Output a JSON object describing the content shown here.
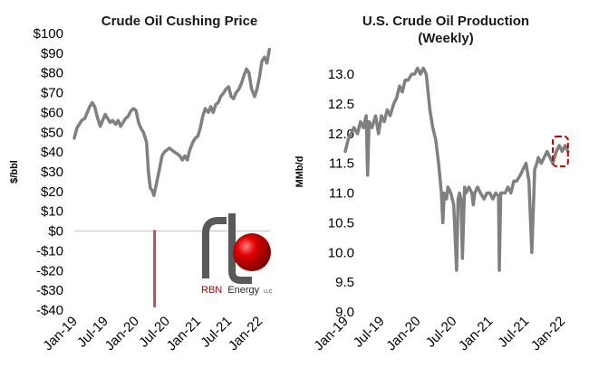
{
  "colors": {
    "series": "#808080",
    "negative_spike": "#c0504d",
    "highlight_box": "#c00000",
    "logo_ball": "#e00000",
    "logo_pipe": "#595959"
  },
  "logo": {
    "brand": "RBN",
    "word": "Energy",
    "suffix": "LLC"
  },
  "chart_data": [
    {
      "type": "line",
      "title": "Crude Oil Cushing Price",
      "ylabel": "$/bbl",
      "xlabel": "",
      "ylim": [
        -40,
        100
      ],
      "yticks": [
        -40,
        -30,
        -20,
        -10,
        0,
        10,
        20,
        30,
        40,
        50,
        60,
        70,
        80,
        90,
        100
      ],
      "ytick_labels": [
        "-$40",
        "-$30",
        "-$20",
        "-$10",
        "$0",
        "$10",
        "$20",
        "$30",
        "$40",
        "$50",
        "$60",
        "$70",
        "$80",
        "$90",
        "$100"
      ],
      "xticks": [
        2019.0,
        2019.5,
        2020.0,
        2020.5,
        2021.0,
        2021.5,
        2022.0
      ],
      "xtick_labels": [
        "Jan-19",
        "Jul-19",
        "Jan-20",
        "Jul-20",
        "Jan-21",
        "Jul-21",
        "Jan-22"
      ],
      "xlim": [
        2019.0,
        2022.17
      ],
      "series": [
        {
          "color": "#808080",
          "x": [
            2019.0,
            2019.04,
            2019.08,
            2019.12,
            2019.17,
            2019.21,
            2019.25,
            2019.29,
            2019.33,
            2019.37,
            2019.42,
            2019.46,
            2019.5,
            2019.54,
            2019.58,
            2019.62,
            2019.67,
            2019.71,
            2019.75,
            2019.79,
            2019.83,
            2019.87,
            2019.92,
            2019.96,
            2020.0,
            2020.04,
            2020.08,
            2020.12,
            2020.17,
            2020.2,
            2020.23,
            2020.27,
            2020.29,
            2020.33,
            2020.37,
            2020.42,
            2020.46,
            2020.5,
            2020.54,
            2020.58,
            2020.62,
            2020.67,
            2020.71,
            2020.75,
            2020.79,
            2020.83,
            2020.87,
            2020.92,
            2020.96,
            2021.0,
            2021.04,
            2021.08,
            2021.12,
            2021.17,
            2021.21,
            2021.25,
            2021.29,
            2021.33,
            2021.37,
            2021.42,
            2021.46,
            2021.5,
            2021.54,
            2021.58,
            2021.62,
            2021.67,
            2021.71,
            2021.75,
            2021.79,
            2021.83,
            2021.87,
            2021.92,
            2021.96,
            2022.0,
            2022.04,
            2022.08,
            2022.12,
            2022.16
          ],
          "y": [
            47,
            52,
            54,
            56,
            57,
            60,
            63,
            65,
            63,
            58,
            53,
            56,
            59,
            57,
            55,
            56,
            54,
            56,
            53,
            55,
            57,
            58,
            61,
            62,
            61,
            55,
            52,
            50,
            45,
            30,
            22,
            20,
            18,
            24,
            30,
            38,
            40,
            41,
            42,
            41,
            40,
            39,
            38,
            36,
            38,
            36,
            41,
            45,
            47,
            48,
            52,
            58,
            62,
            60,
            63,
            60,
            64,
            65,
            68,
            70,
            72,
            73,
            68,
            67,
            70,
            72,
            75,
            79,
            82,
            80,
            72,
            68,
            72,
            78,
            86,
            88,
            85,
            92
          ]
        },
        {
          "name": "",
          "color": "#c0504d",
          "x": [
            2020.3,
            2020.3
          ],
          "y": [
            0,
            -38
          ]
        }
      ]
    },
    {
      "type": "line",
      "title": "U.S. Crude Oil Production (Weekly)",
      "title_lines": [
        "U.S. Crude Oil Production",
        "(Weekly)"
      ],
      "ylabel": "MMb/d",
      "xlabel": "",
      "ylim": [
        9.0,
        13.0
      ],
      "yticks": [
        9.0,
        9.5,
        10.0,
        10.5,
        11.0,
        11.5,
        12.0,
        12.5,
        13.0
      ],
      "ytick_labels": [
        "9.0",
        "9.5",
        "10.0",
        "10.5",
        "11.0",
        "11.5",
        "12.0",
        "12.5",
        "13.0"
      ],
      "xticks": [
        2019.0,
        2019.5,
        2020.0,
        2020.5,
        2021.0,
        2021.5,
        2022.0
      ],
      "xtick_labels": [
        "Jan-19",
        "Jul-19",
        "Jan-20",
        "Jul-20",
        "Jan-21",
        "Jul-21",
        "Jan-22"
      ],
      "xlim": [
        2019.0,
        2022.12
      ],
      "highlight": {
        "x": [
          2021.87,
          2022.08
        ],
        "y": [
          11.45,
          11.95
        ]
      },
      "series": [
        {
          "color": "#808080",
          "x": [
            2019.0,
            2019.04,
            2019.08,
            2019.12,
            2019.17,
            2019.21,
            2019.25,
            2019.29,
            2019.31,
            2019.33,
            2019.37,
            2019.42,
            2019.46,
            2019.5,
            2019.54,
            2019.58,
            2019.62,
            2019.67,
            2019.71,
            2019.75,
            2019.79,
            2019.83,
            2019.87,
            2019.92,
            2019.96,
            2020.0,
            2020.04,
            2020.08,
            2020.12,
            2020.17,
            2020.21,
            2020.25,
            2020.29,
            2020.33,
            2020.35,
            2020.37,
            2020.4,
            2020.42,
            2020.46,
            2020.5,
            2020.54,
            2020.56,
            2020.58,
            2020.6,
            2020.62,
            2020.65,
            2020.67,
            2020.71,
            2020.75,
            2020.77,
            2020.79,
            2020.83,
            2020.87,
            2020.92,
            2020.96,
            2021.0,
            2021.04,
            2021.08,
            2021.12,
            2021.13,
            2021.15,
            2021.17,
            2021.21,
            2021.25,
            2021.29,
            2021.33,
            2021.37,
            2021.42,
            2021.46,
            2021.5,
            2021.54,
            2021.58,
            2021.62,
            2021.65,
            2021.67,
            2021.71,
            2021.75,
            2021.79,
            2021.83,
            2021.87,
            2021.92,
            2021.96,
            2022.0,
            2022.04,
            2022.08
          ],
          "y": [
            11.7,
            11.9,
            12.0,
            12.1,
            12.0,
            12.2,
            12.1,
            12.3,
            11.3,
            12.2,
            12.1,
            12.3,
            12.0,
            12.3,
            12.2,
            12.4,
            12.3,
            12.5,
            12.6,
            12.8,
            12.7,
            12.9,
            12.9,
            13.0,
            13.0,
            13.1,
            13.0,
            13.1,
            13.0,
            12.4,
            12.1,
            11.9,
            11.5,
            11.0,
            10.5,
            11.0,
            10.9,
            11.1,
            11.0,
            10.8,
            9.7,
            10.9,
            11.0,
            10.9,
            9.9,
            11.1,
            11.0,
            11.1,
            11.0,
            10.8,
            11.0,
            11.1,
            11.0,
            10.9,
            11.0,
            11.0,
            10.9,
            11.0,
            10.95,
            9.7,
            11.0,
            11.0,
            11.0,
            11.1,
            11.0,
            11.2,
            11.2,
            11.3,
            11.4,
            11.5,
            11.2,
            10.0,
            11.4,
            11.5,
            11.6,
            11.5,
            11.6,
            11.7,
            11.6,
            11.5,
            11.7,
            11.8,
            11.7,
            11.8,
            11.7
          ]
        }
      ]
    }
  ]
}
